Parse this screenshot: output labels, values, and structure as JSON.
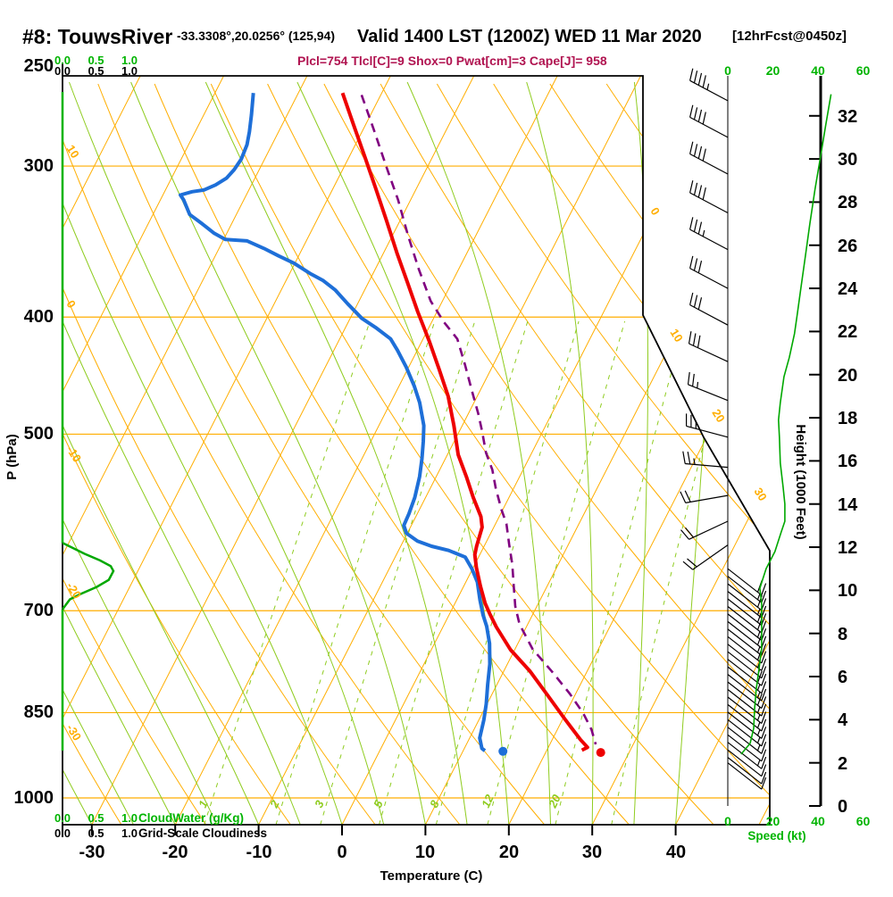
{
  "header": {
    "station_id": "#8: TouwsRiver",
    "coords": "-33.3308°,20.0256° (125,94)",
    "valid": "Valid 1400 LST (1200Z) WED 11 Mar 2020",
    "forecast": "[12hrFcst@0450z]",
    "stats": "Plcl=754 Tlcl[C]=9 Shox=0 Pwat[cm]=3 Cape[J]= 958"
  },
  "axes": {
    "pressure": {
      "label": "P (hPa)",
      "ticks": [
        250,
        300,
        400,
        500,
        700,
        850,
        1000
      ]
    },
    "temperature": {
      "label": "Temperature (C)",
      "ticks": [
        -30,
        -20,
        -10,
        0,
        10,
        20,
        30,
        40
      ]
    },
    "height": {
      "label": "Height (1000 Feet)",
      "ticks": [
        0,
        2,
        4,
        6,
        8,
        10,
        12,
        14,
        16,
        18,
        20,
        22,
        24,
        26,
        28,
        30,
        32
      ]
    },
    "speed": {
      "label": "Speed (kt)",
      "ticks": [
        0,
        20,
        40,
        60
      ]
    },
    "cloudwater": {
      "label": "CloudWater (g/Kg)",
      "ticks": [
        "0.0",
        "0.5",
        "1.0"
      ]
    },
    "cloudiness": {
      "label": "Grid-Scale Cloudiness",
      "ticks": [
        "0.0",
        "0.5",
        "1.0"
      ]
    },
    "isotherm_edge_labels": [
      "0",
      "10",
      "20",
      "30"
    ],
    "adiabat_edge_labels": [
      "10",
      "0",
      "-10",
      "-20",
      "-30"
    ],
    "mixing_ratio_labels": [
      "1",
      "2",
      "3",
      "5",
      "8",
      "12",
      "20"
    ]
  },
  "colors": {
    "grid_orange": "#FFAE00",
    "grid_green": "#8FCC1F",
    "axis_green": "#00B400",
    "profile_green": "#00A800",
    "temperature_red": "#EE0000",
    "dewpoint_blue": "#1E6FD8",
    "parcel_purple": "#800080",
    "stats_maroon": "#B01350",
    "black": "#000000"
  },
  "chart_data": {
    "type": "skewt-log-p-sounding",
    "title": "#8: TouwsRiver Valid 1400 LST (1200Z) WED 11 Mar 2020",
    "xlabel": "Temperature (C)",
    "ylabel": "P (hPa)",
    "x_range_c": [
      -35,
      47
    ],
    "pressure_range_hpa": [
      250,
      1052
    ],
    "background": {
      "pressure_lines_hpa": [
        300,
        400,
        500,
        700,
        850,
        1000
      ],
      "isotherms_c": [
        -110,
        -100,
        -90,
        -80,
        -70,
        -60,
        -50,
        -40,
        -30,
        -20,
        -10,
        0,
        10,
        20,
        30,
        40,
        50
      ],
      "dry_adiabats_theta_c": [
        -40,
        -30,
        -20,
        -10,
        0,
        10,
        20,
        30,
        40,
        50,
        60,
        70,
        80,
        90,
        100,
        110
      ],
      "moist_adiabats_start_c": [
        -45,
        -40,
        -35,
        -30,
        -25,
        -20,
        -15,
        -10,
        -5,
        0,
        5,
        10,
        15,
        20,
        25,
        30,
        35,
        40
      ],
      "mixing_ratio_gkg": [
        1,
        2,
        3,
        5,
        8,
        12,
        20,
        30
      ]
    },
    "temperature_profile": [
      [
        261,
        -44.7
      ],
      [
        277,
        -41.5
      ],
      [
        296,
        -37.9
      ],
      [
        313,
        -34.9
      ],
      [
        333,
        -31.6
      ],
      [
        354,
        -28.4
      ],
      [
        374,
        -25.4
      ],
      [
        396,
        -22.3
      ],
      [
        419,
        -19.1
      ],
      [
        442,
        -16.2
      ],
      [
        465,
        -13.5
      ],
      [
        492,
        -11.0
      ],
      [
        520,
        -8.7
      ],
      [
        542,
        -6.4
      ],
      [
        564,
        -4.3
      ],
      [
        585,
        -2.2
      ],
      [
        597,
        -1.4
      ],
      [
        619,
        -0.9
      ],
      [
        629,
        -0.6
      ],
      [
        645,
        0.4
      ],
      [
        668,
        2.0
      ],
      [
        690,
        3.6
      ],
      [
        704,
        4.8
      ],
      [
        722,
        6.4
      ],
      [
        754,
        9.5
      ],
      [
        786,
        13.2
      ],
      [
        823,
        16.8
      ],
      [
        861,
        20.3
      ],
      [
        895,
        23.4
      ],
      [
        908,
        24.7
      ],
      [
        913,
        24.2
      ]
    ],
    "dewpoint_profile": [
      [
        261,
        -55.4
      ],
      [
        272,
        -54.3
      ],
      [
        281,
        -53.5
      ],
      [
        288,
        -53.0
      ],
      [
        296,
        -52.8
      ],
      [
        302,
        -53.0
      ],
      [
        307,
        -53.4
      ],
      [
        311,
        -54.3
      ],
      [
        314,
        -55.4
      ],
      [
        315,
        -56.7
      ],
      [
        317,
        -57.9
      ],
      [
        320,
        -57.2
      ],
      [
        329,
        -55.6
      ],
      [
        335,
        -53.5
      ],
      [
        341,
        -51.5
      ],
      [
        345,
        -49.8
      ],
      [
        346,
        -47.1
      ],
      [
        351,
        -44.6
      ],
      [
        356,
        -42.4
      ],
      [
        361,
        -40.1
      ],
      [
        368,
        -37.6
      ],
      [
        373,
        -35.6
      ],
      [
        380,
        -33.5
      ],
      [
        390,
        -31.2
      ],
      [
        401,
        -28.6
      ],
      [
        408,
        -26.4
      ],
      [
        417,
        -23.9
      ],
      [
        426,
        -22.4
      ],
      [
        440,
        -20.3
      ],
      [
        456,
        -18.2
      ],
      [
        471,
        -16.5
      ],
      [
        492,
        -14.6
      ],
      [
        507,
        -13.7
      ],
      [
        524,
        -12.8
      ],
      [
        542,
        -12.0
      ],
      [
        564,
        -11.3
      ],
      [
        582,
        -11.0
      ],
      [
        595,
        -10.9
      ],
      [
        604,
        -10.1
      ],
      [
        613,
        -8.3
      ],
      [
        619,
        -6.3
      ],
      [
        624,
        -4.0
      ],
      [
        632,
        -1.6
      ],
      [
        646,
        -0.1
      ],
      [
        663,
        1.4
      ],
      [
        686,
        2.8
      ],
      [
        706,
        4.1
      ],
      [
        721,
        5.2
      ],
      [
        745,
        6.6
      ],
      [
        775,
        7.9
      ],
      [
        806,
        8.9
      ],
      [
        836,
        9.9
      ],
      [
        862,
        10.6
      ],
      [
        892,
        11.2
      ],
      [
        910,
        12.1
      ],
      [
        914,
        12.6
      ]
    ],
    "parcel_profile": [
      [
        262,
        -42.3
      ],
      [
        281,
        -38.5
      ],
      [
        300,
        -35.0
      ],
      [
        320,
        -31.5
      ],
      [
        342,
        -28.2
      ],
      [
        365,
        -24.8
      ],
      [
        388,
        -21.4
      ],
      [
        404,
        -18.5
      ],
      [
        417,
        -15.9
      ],
      [
        438,
        -13.4
      ],
      [
        461,
        -10.9
      ],
      [
        481,
        -8.8
      ],
      [
        497,
        -7.3
      ],
      [
        518,
        -5.5
      ],
      [
        535,
        -3.7
      ],
      [
        555,
        -2.1
      ],
      [
        578,
        -0.1
      ],
      [
        593,
        1.3
      ],
      [
        617,
        2.9
      ],
      [
        641,
        4.5
      ],
      [
        668,
        6.0
      ],
      [
        694,
        7.4
      ],
      [
        718,
        9.0
      ],
      [
        753,
        12.1
      ],
      [
        786,
        15.8
      ],
      [
        820,
        19.3
      ],
      [
        851,
        22.1
      ],
      [
        878,
        24.1
      ],
      [
        903,
        25.5
      ]
    ],
    "surface_temperature": {
      "pressure_hpa": 917,
      "temp_c": 26.6
    },
    "surface_dewpoint": {
      "pressure_hpa": 915,
      "temp_c": 14.8
    },
    "wind_speed_profile_kft_kt": [
      [
        33.0,
        45.8
      ],
      [
        31.6,
        43.5
      ],
      [
        30.1,
        41.1
      ],
      [
        28.6,
        38.7
      ],
      [
        27.0,
        36.4
      ],
      [
        25.5,
        34.4
      ],
      [
        24.0,
        32.4
      ],
      [
        22.8,
        30.8
      ],
      [
        21.9,
        29.6
      ],
      [
        20.8,
        27.3
      ],
      [
        19.9,
        24.9
      ],
      [
        18.7,
        23.3
      ],
      [
        17.9,
        22.5
      ],
      [
        17.1,
        22.9
      ],
      [
        15.9,
        23.3
      ],
      [
        14.8,
        24.5
      ],
      [
        14.0,
        25.3
      ],
      [
        13.2,
        25.3
      ],
      [
        12.7,
        23.7
      ],
      [
        11.8,
        20.9
      ],
      [
        11.0,
        17.0
      ],
      [
        10.1,
        14.2
      ],
      [
        9.4,
        15.0
      ],
      [
        8.4,
        15.0
      ],
      [
        7.3,
        15.0
      ],
      [
        6.3,
        13.8
      ],
      [
        5.4,
        12.6
      ],
      [
        4.5,
        11.9
      ],
      [
        3.6,
        11.5
      ],
      [
        2.9,
        9.9
      ],
      [
        2.4,
        5.9
      ]
    ],
    "cloud_water_profile_hpa_gkg": [
      [
        615,
        0.0
      ],
      [
        628,
        0.33
      ],
      [
        636,
        0.56
      ],
      [
        643,
        0.72
      ],
      [
        649,
        0.76
      ],
      [
        660,
        0.69
      ],
      [
        669,
        0.51
      ],
      [
        678,
        0.27
      ],
      [
        685,
        0.11
      ],
      [
        698,
        0.0
      ]
    ],
    "wind_barbs": [
      [
        32.7,
        152,
        4.5
      ],
      [
        31.0,
        152,
        4
      ],
      [
        29.3,
        152,
        4
      ],
      [
        27.5,
        152,
        4
      ],
      [
        25.8,
        152,
        3.5
      ],
      [
        24.0,
        152,
        3
      ],
      [
        22.3,
        152,
        3
      ],
      [
        20.6,
        155,
        3
      ],
      [
        18.8,
        158,
        2.5
      ],
      [
        17.1,
        165,
        2.5
      ],
      [
        15.7,
        175,
        2.5
      ],
      [
        14.4,
        190,
        2
      ],
      [
        13.2,
        205,
        2
      ],
      [
        12.1,
        215,
        2
      ],
      [
        11.0,
        322,
        2
      ],
      [
        10.65,
        322,
        1.5
      ],
      [
        10.3,
        322,
        2
      ],
      [
        9.95,
        322,
        1.5
      ],
      [
        9.6,
        322,
        2
      ],
      [
        9.25,
        322,
        2
      ],
      [
        8.9,
        322,
        1.5
      ],
      [
        8.55,
        322,
        2
      ],
      [
        8.2,
        322,
        1.5
      ],
      [
        7.85,
        322,
        2
      ],
      [
        7.5,
        322,
        1.5
      ],
      [
        7.15,
        322,
        1.5
      ],
      [
        6.8,
        322,
        2
      ],
      [
        6.45,
        322,
        1.5
      ],
      [
        6.1,
        322,
        1.5
      ],
      [
        5.75,
        322,
        2
      ],
      [
        5.4,
        322,
        1.5
      ],
      [
        5.05,
        322,
        1.5
      ],
      [
        4.7,
        322,
        1.5
      ],
      [
        4.35,
        322,
        1.5
      ],
      [
        4.0,
        322,
        1.5
      ],
      [
        3.65,
        322,
        1.5
      ],
      [
        3.3,
        322,
        1
      ],
      [
        2.95,
        322,
        1.5
      ],
      [
        2.6,
        322,
        1
      ],
      [
        2.25,
        322,
        1
      ],
      [
        2.0,
        322,
        1
      ]
    ]
  }
}
